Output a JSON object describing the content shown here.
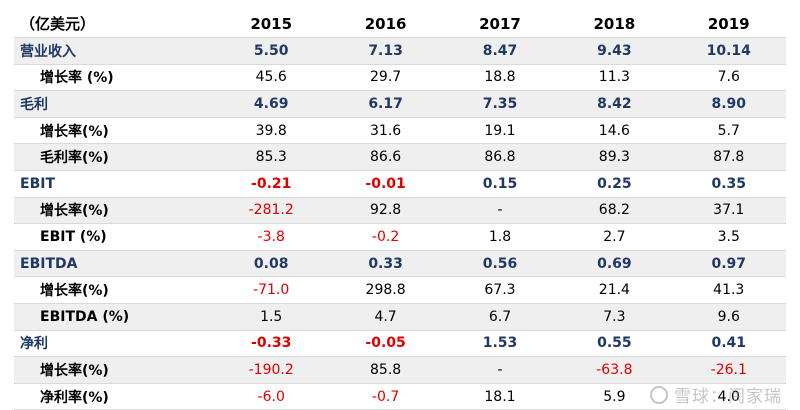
{
  "table": {
    "unit_label": "（亿美元）",
    "years": [
      "2015",
      "2016",
      "2017",
      "2018",
      "2019"
    ],
    "rows": [
      {
        "label": "营业收入",
        "kind": "main",
        "values": [
          "5.50",
          "7.13",
          "8.47",
          "9.43",
          "10.14"
        ],
        "negative": [
          false,
          false,
          false,
          false,
          false
        ]
      },
      {
        "label": "增长率 (%)",
        "kind": "sub",
        "values": [
          "45.6",
          "29.7",
          "18.8",
          "11.3",
          "7.6"
        ],
        "negative": [
          false,
          false,
          false,
          false,
          false
        ]
      },
      {
        "label": "毛利",
        "kind": "main",
        "values": [
          "4.69",
          "6.17",
          "7.35",
          "8.42",
          "8.90"
        ],
        "negative": [
          false,
          false,
          false,
          false,
          false
        ]
      },
      {
        "label": "增长率(%)",
        "kind": "sub",
        "values": [
          "39.8",
          "31.6",
          "19.1",
          "14.6",
          "5.7"
        ],
        "negative": [
          false,
          false,
          false,
          false,
          false
        ]
      },
      {
        "label": "毛利率(%)",
        "kind": "sub",
        "values": [
          "85.3",
          "86.6",
          "86.8",
          "89.3",
          "87.8"
        ],
        "negative": [
          false,
          false,
          false,
          false,
          false
        ]
      },
      {
        "label": "EBIT",
        "kind": "main",
        "values": [
          "-0.21",
          "-0.01",
          "0.15",
          "0.25",
          "0.35"
        ],
        "negative": [
          true,
          true,
          false,
          false,
          false
        ]
      },
      {
        "label": "增长率(%)",
        "kind": "sub",
        "values": [
          "-281.2",
          "92.8",
          "-",
          "68.2",
          "37.1"
        ],
        "negative": [
          true,
          false,
          false,
          false,
          false
        ]
      },
      {
        "label": "EBIT (%)",
        "kind": "sub",
        "values": [
          "-3.8",
          "-0.2",
          "1.8",
          "2.7",
          "3.5"
        ],
        "negative": [
          true,
          true,
          false,
          false,
          false
        ]
      },
      {
        "label": "EBITDA",
        "kind": "main",
        "values": [
          "0.08",
          "0.33",
          "0.56",
          "0.69",
          "0.97"
        ],
        "negative": [
          false,
          false,
          false,
          false,
          false
        ]
      },
      {
        "label": "增长率(%)",
        "kind": "sub",
        "values": [
          "-71.0",
          "298.8",
          "67.3",
          "21.4",
          "41.3"
        ],
        "negative": [
          true,
          false,
          false,
          false,
          false
        ]
      },
      {
        "label": "EBITDA (%)",
        "kind": "sub",
        "values": [
          "1.5",
          "4.7",
          "6.7",
          "7.3",
          "9.6"
        ],
        "negative": [
          false,
          false,
          false,
          false,
          false
        ]
      },
      {
        "label": "净利",
        "kind": "main",
        "values": [
          "-0.33",
          "-0.05",
          "1.53",
          "0.55",
          "0.41"
        ],
        "negative": [
          true,
          true,
          false,
          false,
          false
        ]
      },
      {
        "label": "增长率(%)",
        "kind": "sub",
        "values": [
          "-190.2",
          "85.8",
          "-",
          "-63.8",
          "-26.1"
        ],
        "negative": [
          true,
          false,
          false,
          true,
          true
        ]
      },
      {
        "label": "净利率(%)",
        "kind": "sub",
        "values": [
          "-6.0",
          "-0.7",
          "18.1",
          "5.9",
          "4.0"
        ],
        "negative": [
          true,
          true,
          false,
          false,
          false
        ]
      }
    ]
  },
  "watermark": {
    "text": "雪球：闫家瑞"
  },
  "colors": {
    "main_label": "#1f3864",
    "negative": "#e00000",
    "shade": "#efefef"
  }
}
